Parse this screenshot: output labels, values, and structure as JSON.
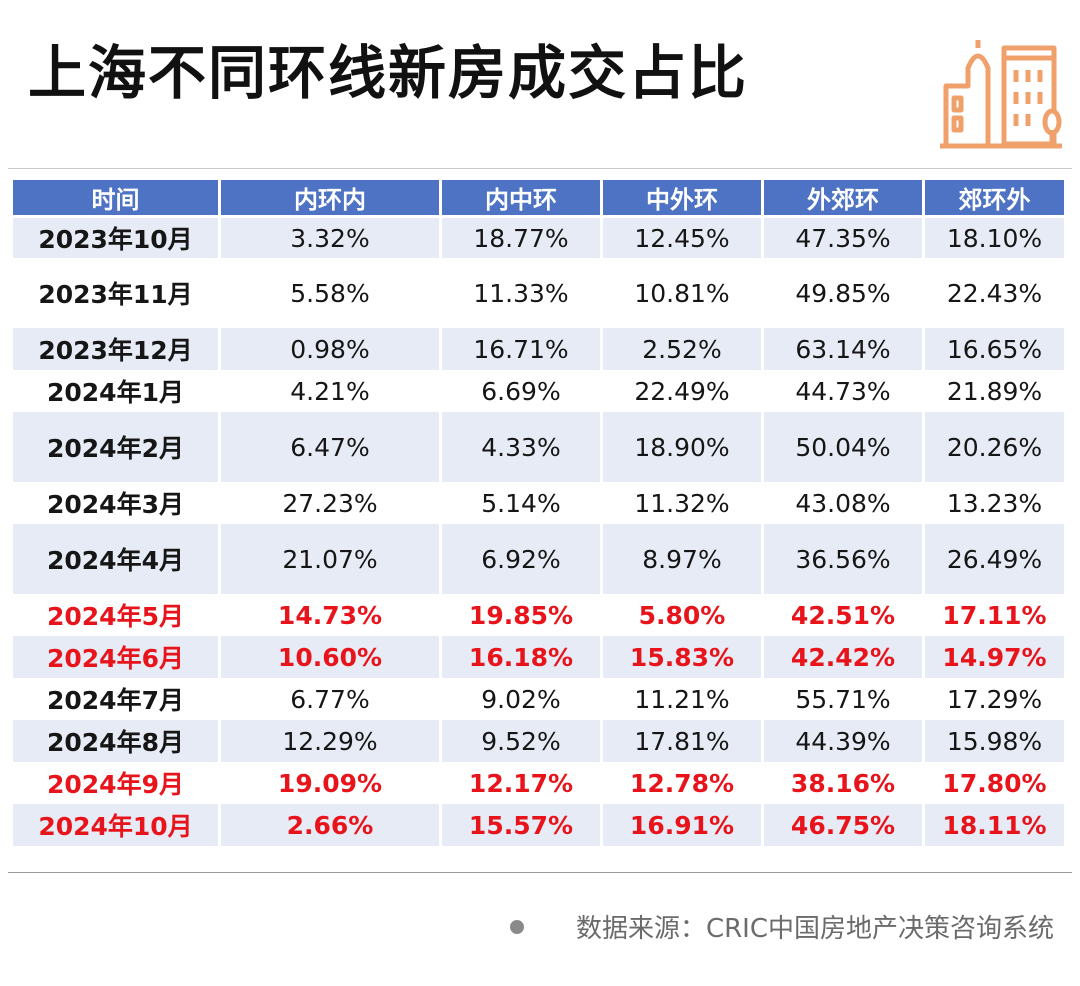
{
  "title": "上海不同环线新房成交占比",
  "logo_icon": "city-buildings-icon",
  "accent_color": "#f0a16b",
  "header_color": "#4e73c4",
  "highlight_color": "#e8141b",
  "source": "数据来源：CRIC中国房地产决策咨询系统",
  "chart_data": {
    "type": "table",
    "title": "上海不同环线新房成交占比",
    "columns": [
      "时间",
      "内环内",
      "内中环",
      "中外环",
      "外郊环",
      "郊环外"
    ],
    "rows": [
      {
        "time": "2023年10月",
        "values": [
          "3.32%",
          "18.77%",
          "12.45%",
          "47.35%",
          "18.10%"
        ],
        "highlight": false,
        "shaded": true,
        "height": 40
      },
      {
        "time": "2023年11月",
        "values": [
          "5.58%",
          "11.33%",
          "10.81%",
          "49.85%",
          "22.43%"
        ],
        "highlight": false,
        "shaded": false,
        "height": 70
      },
      {
        "time": "2023年12月",
        "values": [
          "0.98%",
          "16.71%",
          "2.52%",
          "63.14%",
          "16.65%"
        ],
        "highlight": false,
        "shaded": true,
        "height": 42
      },
      {
        "time": "2024年1月",
        "values": [
          "4.21%",
          "6.69%",
          "22.49%",
          "44.73%",
          "21.89%"
        ],
        "highlight": false,
        "shaded": false,
        "height": 42
      },
      {
        "time": "2024年2月",
        "values": [
          "6.47%",
          "4.33%",
          "18.90%",
          "50.04%",
          "20.26%"
        ],
        "highlight": false,
        "shaded": true,
        "height": 70
      },
      {
        "time": "2024年3月",
        "values": [
          "27.23%",
          "5.14%",
          "11.32%",
          "43.08%",
          "13.23%"
        ],
        "highlight": false,
        "shaded": false,
        "height": 42
      },
      {
        "time": "2024年4月",
        "values": [
          "21.07%",
          "6.92%",
          "8.97%",
          "36.56%",
          "26.49%"
        ],
        "highlight": false,
        "shaded": true,
        "height": 70
      },
      {
        "time": "2024年5月",
        "values": [
          "14.73%",
          "19.85%",
          "5.80%",
          "42.51%",
          "17.11%"
        ],
        "highlight": true,
        "shaded": false,
        "height": 42
      },
      {
        "time": "2024年6月",
        "values": [
          "10.60%",
          "16.18%",
          "15.83%",
          "42.42%",
          "14.97%"
        ],
        "highlight": true,
        "shaded": true,
        "height": 42
      },
      {
        "time": "2024年7月",
        "values": [
          "6.77%",
          "9.02%",
          "11.21%",
          "55.71%",
          "17.29%"
        ],
        "highlight": false,
        "shaded": false,
        "height": 42
      },
      {
        "time": "2024年8月",
        "values": [
          "12.29%",
          "9.52%",
          "17.81%",
          "44.39%",
          "15.98%"
        ],
        "highlight": false,
        "shaded": true,
        "height": 42
      },
      {
        "time": "2024年9月",
        "values": [
          "19.09%",
          "12.17%",
          "12.78%",
          "38.16%",
          "17.80%"
        ],
        "highlight": true,
        "shaded": false,
        "height": 42
      },
      {
        "time": "2024年10月",
        "values": [
          "2.66%",
          "15.57%",
          "16.91%",
          "46.75%",
          "18.11%"
        ],
        "highlight": true,
        "shaded": true,
        "height": 42
      }
    ]
  }
}
